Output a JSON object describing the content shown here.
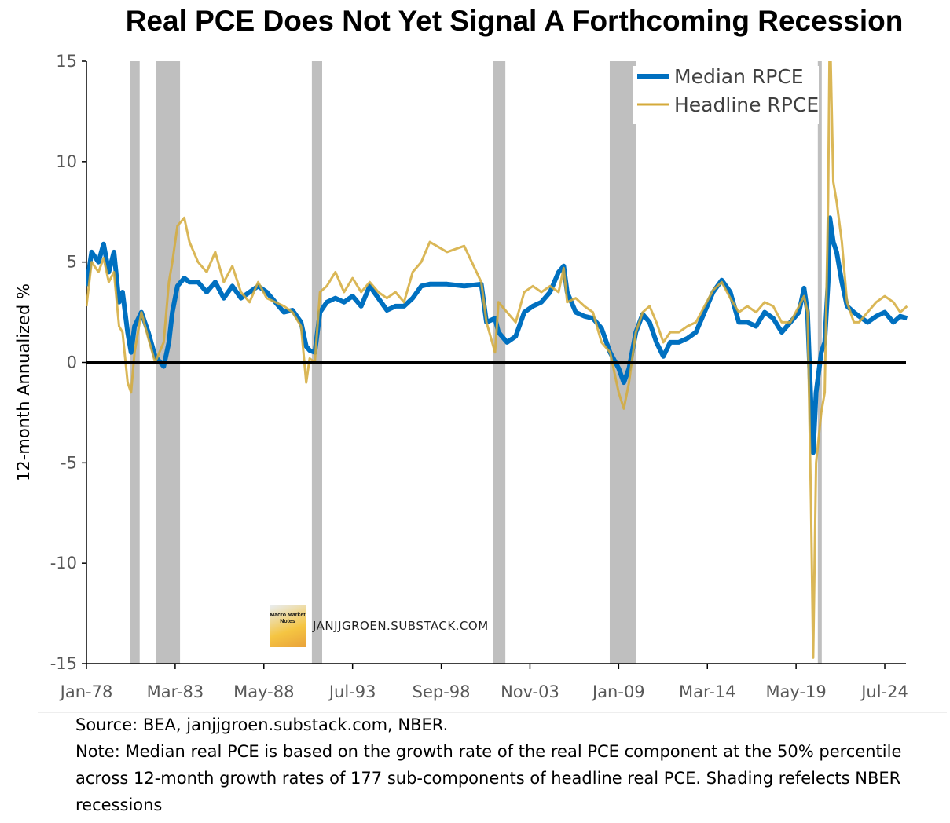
{
  "chart_data": {
    "type": "line",
    "title": "Real PCE Does Not Yet Signal A Forthcoming Recession",
    "ylabel": "12-month Annualized %",
    "xlabel": "",
    "ylim": [
      -15,
      15
    ],
    "yticks": [
      15,
      10,
      5,
      0,
      -5,
      -10,
      -15
    ],
    "xlim": [
      1978.0,
      2025.95
    ],
    "xticks": [
      {
        "label": "Jan-78",
        "x": 1978.0
      },
      {
        "label": "Mar-83",
        "x": 1983.167
      },
      {
        "label": "May-88",
        "x": 1988.333
      },
      {
        "label": "Jul-93",
        "x": 1993.5
      },
      {
        "label": "Sep-98",
        "x": 1998.667
      },
      {
        "label": "Nov-03",
        "x": 2003.833
      },
      {
        "label": "Jan-09",
        "x": 2009.0
      },
      {
        "label": "Mar-14",
        "x": 2014.167
      },
      {
        "label": "May-19",
        "x": 2019.333
      },
      {
        "label": "Jul-24",
        "x": 2024.5
      }
    ],
    "legend": {
      "placement": "top-right",
      "entries": [
        "Median RPCE",
        "Headline RPCE"
      ]
    },
    "recessions": [
      [
        1980.55,
        1981.1
      ],
      [
        1982.07,
        1983.45
      ],
      [
        1991.13,
        1991.73
      ],
      [
        2001.7,
        2002.4
      ],
      [
        2008.48,
        2010.0
      ],
      [
        2020.6,
        2020.83
      ]
    ],
    "x": [
      1978.0,
      1978.3,
      1978.7,
      1979.0,
      1979.3,
      1979.6,
      1979.9,
      1980.1,
      1980.4,
      1980.6,
      1980.8,
      1981.2,
      1981.6,
      1982.0,
      1982.5,
      1982.8,
      1983.0,
      1983.3,
      1983.7,
      1984.0,
      1984.5,
      1985.0,
      1985.5,
      1986.0,
      1986.5,
      1987.0,
      1987.5,
      1988.0,
      1988.5,
      1989.0,
      1989.5,
      1990.0,
      1990.5,
      1990.8,
      1991.0,
      1991.3,
      1991.6,
      1992.0,
      1992.5,
      1993.0,
      1993.5,
      1994.0,
      1994.5,
      1995.0,
      1995.5,
      1996.0,
      1996.5,
      1997.0,
      1997.5,
      1998.0,
      1999.0,
      2000.0,
      2001.0,
      2001.3,
      2001.8,
      2002.0,
      2002.5,
      2003.0,
      2003.5,
      2004.0,
      2004.5,
      2005.0,
      2005.5,
      2005.8,
      2006.0,
      2006.5,
      2007.0,
      2007.5,
      2008.0,
      2008.5,
      2009.0,
      2009.3,
      2009.6,
      2010.0,
      2010.4,
      2010.8,
      2011.2,
      2011.6,
      2012.0,
      2012.5,
      2013.0,
      2013.5,
      2014.0,
      2014.5,
      2015.0,
      2015.5,
      2016.0,
      2016.5,
      2017.0,
      2017.5,
      2018.0,
      2018.5,
      2019.0,
      2019.5,
      2019.8,
      2020.0,
      2020.2,
      2020.33,
      2020.5,
      2020.8,
      2021.0,
      2021.2,
      2021.3,
      2021.5,
      2021.7,
      2022.0,
      2022.3,
      2022.7,
      2023.0,
      2023.5,
      2024.0,
      2024.5,
      2025.0,
      2025.4,
      2025.8
    ],
    "series": [
      {
        "name": "Median RPCE",
        "color": "#0070C0",
        "values": [
          3.8,
          5.5,
          5.0,
          5.9,
          4.5,
          5.5,
          3.0,
          3.5,
          1.5,
          0.5,
          1.8,
          2.5,
          1.5,
          0.3,
          -0.2,
          1.0,
          2.5,
          3.8,
          4.2,
          4.0,
          4.0,
          3.5,
          4.0,
          3.2,
          3.8,
          3.2,
          3.5,
          3.8,
          3.5,
          3.0,
          2.5,
          2.6,
          2.0,
          0.8,
          0.6,
          0.5,
          2.5,
          3.0,
          3.2,
          3.0,
          3.3,
          2.8,
          3.8,
          3.2,
          2.6,
          2.8,
          2.8,
          3.2,
          3.8,
          3.9,
          3.9,
          3.8,
          3.9,
          2.0,
          2.2,
          1.5,
          1.0,
          1.3,
          2.5,
          2.8,
          3.0,
          3.5,
          4.5,
          4.8,
          3.5,
          2.5,
          2.3,
          2.2,
          1.7,
          0.5,
          -0.3,
          -1.0,
          -0.3,
          1.5,
          2.4,
          2.0,
          1.0,
          0.3,
          1.0,
          1.0,
          1.2,
          1.5,
          2.5,
          3.5,
          4.1,
          3.5,
          2.0,
          2.0,
          1.8,
          2.5,
          2.2,
          1.5,
          2.0,
          2.5,
          3.7,
          2.5,
          -2.0,
          -4.5,
          -1.5,
          0.5,
          1.0,
          4.0,
          7.2,
          6.0,
          5.5,
          4.0,
          2.8,
          2.5,
          2.3,
          2.0,
          2.3,
          2.5,
          2.0,
          2.3,
          2.2
        ]
      },
      {
        "name": "Headline RPCE",
        "color": "#D4AA3A",
        "values": [
          2.8,
          5.0,
          4.5,
          5.2,
          4.0,
          4.5,
          1.8,
          1.5,
          -1.0,
          -1.5,
          0.5,
          2.5,
          1.2,
          0.0,
          1.0,
          4.0,
          5.0,
          6.8,
          7.2,
          6.0,
          5.0,
          4.5,
          5.5,
          4.0,
          4.8,
          3.5,
          3.0,
          4.0,
          3.2,
          3.0,
          2.8,
          2.5,
          1.8,
          -1.0,
          0.2,
          0.0,
          3.5,
          3.8,
          4.5,
          3.5,
          4.2,
          3.5,
          4.0,
          3.5,
          3.2,
          3.5,
          3.0,
          4.5,
          5.0,
          6.0,
          5.5,
          5.8,
          4.0,
          2.0,
          0.5,
          3.0,
          2.5,
          2.0,
          3.5,
          3.8,
          3.5,
          3.8,
          3.5,
          4.7,
          3.0,
          3.2,
          2.8,
          2.5,
          1.0,
          0.5,
          -1.5,
          -2.3,
          -1.0,
          1.5,
          2.5,
          2.8,
          2.0,
          1.0,
          1.5,
          1.5,
          1.8,
          2.0,
          2.8,
          3.6,
          4.0,
          3.2,
          2.5,
          2.8,
          2.5,
          3.0,
          2.8,
          2.0,
          2.0,
          2.8,
          3.3,
          2.5,
          -7.0,
          -14.7,
          -5.0,
          -2.5,
          -1.5,
          8.0,
          17.0,
          9.0,
          8.0,
          6.0,
          3.0,
          2.0,
          2.0,
          2.5,
          3.0,
          3.3,
          3.0,
          2.5,
          2.8
        ]
      }
    ]
  },
  "watermark": {
    "logo_text": "Macro Market Notes",
    "site": "JANJJGROEN.SUBSTACK.COM"
  },
  "footer": {
    "source": "Source: BEA, janjjgroen.substack.com, NBER.",
    "note": "Note: Median real PCE is based on the growth rate of the real PCE component at the 50% percentile across 12-month growth rates of 177 sub-components of headline real PCE. Shading refelects NBER recessions"
  }
}
